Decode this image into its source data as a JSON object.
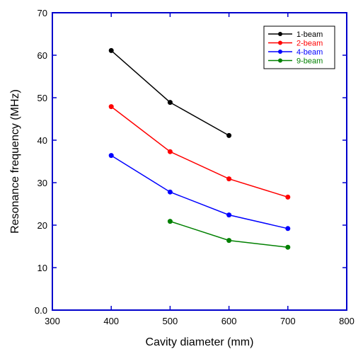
{
  "chart_data": {
    "type": "line",
    "xlabel": "Cavity diameter (mm)",
    "ylabel": "Resonance frequency (MHz)",
    "xlim": [
      300,
      800
    ],
    "ylim": [
      0,
      70
    ],
    "x_ticks": [
      "300",
      "400",
      "500",
      "600",
      "700",
      "800"
    ],
    "y_ticks": [
      "0.0",
      "10",
      "20",
      "30",
      "40",
      "50",
      "60",
      "70"
    ],
    "grid": false,
    "legend_position": "top-right",
    "series": [
      {
        "name": "1-beam",
        "color": "#000000",
        "x": [
          400,
          500,
          600
        ],
        "y": [
          61.1,
          48.9,
          41.1
        ]
      },
      {
        "name": "2-beam",
        "color": "#ff0000",
        "x": [
          400,
          500,
          600,
          700
        ],
        "y": [
          47.9,
          37.3,
          30.9,
          26.6
        ]
      },
      {
        "name": "4-beam",
        "color": "#0000ff",
        "x": [
          400,
          500,
          600,
          700
        ],
        "y": [
          36.4,
          27.8,
          22.4,
          19.2
        ]
      },
      {
        "name": "9-beam",
        "color": "#008000",
        "x": [
          500,
          600,
          700
        ],
        "y": [
          20.9,
          16.4,
          14.8
        ]
      }
    ],
    "frame_color": "#0000cc"
  }
}
